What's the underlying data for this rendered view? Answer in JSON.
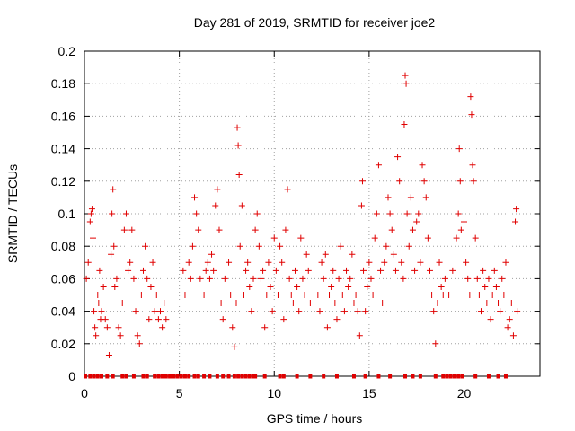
{
  "chart_data": {
    "type": "scatter",
    "title": "Day 281 of 2019, SRMTID for receiver joe2",
    "xlabel": "GPS time / hours",
    "ylabel": "SRMTID / TECUs",
    "xlim": [
      0,
      24
    ],
    "ylim": [
      0,
      0.2
    ],
    "xticks": [
      0,
      5,
      10,
      15,
      20
    ],
    "xtick_labels": [
      "0",
      "5",
      "10",
      "15",
      "20"
    ],
    "yticks": [
      0,
      0.02,
      0.04,
      0.06,
      0.08,
      0.1,
      0.12,
      0.14,
      0.16,
      0.18,
      0.2
    ],
    "ytick_labels": [
      "0",
      "0.02",
      "0.04",
      "0.06",
      "0.08",
      "0.1",
      "0.12",
      "0.14",
      "0.16",
      "0.18",
      "0.2"
    ],
    "grid": true,
    "marker": "+",
    "color": "#e00000",
    "series": [
      {
        "name": "SRMTID",
        "points": [
          [
            0.1,
            0.06
          ],
          [
            0.2,
            0.07
          ],
          [
            0.3,
            0.095
          ],
          [
            0.35,
            0.1
          ],
          [
            0.4,
            0.103
          ],
          [
            0.45,
            0.085
          ],
          [
            0.5,
            0.04
          ],
          [
            0.55,
            0.03
          ],
          [
            0.6,
            0.025
          ],
          [
            0.7,
            0.05
          ],
          [
            0.75,
            0.045
          ],
          [
            0.8,
            0.065
          ],
          [
            0.85,
            0.035
          ],
          [
            0.9,
            0.04
          ],
          [
            1.0,
            0.055
          ],
          [
            1.1,
            0.035
          ],
          [
            1.2,
            0.03
          ],
          [
            1.3,
            0.013
          ],
          [
            1.4,
            0.075
          ],
          [
            1.45,
            0.1
          ],
          [
            1.5,
            0.115
          ],
          [
            1.55,
            0.08
          ],
          [
            1.6,
            0.055
          ],
          [
            1.7,
            0.06
          ],
          [
            1.8,
            0.03
          ],
          [
            1.9,
            0.025
          ],
          [
            2.0,
            0.045
          ],
          [
            2.1,
            0.09
          ],
          [
            2.2,
            0.1
          ],
          [
            2.3,
            0.065
          ],
          [
            2.4,
            0.07
          ],
          [
            2.5,
            0.09
          ],
          [
            2.6,
            0.06
          ],
          [
            2.7,
            0.04
          ],
          [
            2.8,
            0.025
          ],
          [
            2.9,
            0.02
          ],
          [
            3.0,
            0.05
          ],
          [
            3.1,
            0.065
          ],
          [
            3.2,
            0.08
          ],
          [
            3.3,
            0.06
          ],
          [
            3.4,
            0.035
          ],
          [
            3.5,
            0.055
          ],
          [
            3.6,
            0.07
          ],
          [
            3.7,
            0.04
          ],
          [
            3.8,
            0.05
          ],
          [
            3.9,
            0.035
          ],
          [
            4.0,
            0.04
          ],
          [
            4.1,
            0.03
          ],
          [
            4.2,
            0.045
          ],
          [
            4.3,
            0.035
          ],
          [
            5.2,
            0.065
          ],
          [
            5.3,
            0.05
          ],
          [
            5.5,
            0.07
          ],
          [
            5.6,
            0.06
          ],
          [
            5.7,
            0.08
          ],
          [
            5.8,
            0.11
          ],
          [
            5.9,
            0.1
          ],
          [
            6.0,
            0.09
          ],
          [
            6.1,
            0.06
          ],
          [
            6.3,
            0.05
          ],
          [
            6.4,
            0.065
          ],
          [
            6.5,
            0.07
          ],
          [
            6.6,
            0.06
          ],
          [
            6.7,
            0.075
          ],
          [
            6.8,
            0.065
          ],
          [
            6.9,
            0.105
          ],
          [
            7.0,
            0.115
          ],
          [
            7.1,
            0.09
          ],
          [
            7.2,
            0.045
          ],
          [
            7.3,
            0.035
          ],
          [
            7.4,
            0.06
          ],
          [
            7.6,
            0.07
          ],
          [
            7.7,
            0.05
          ],
          [
            7.8,
            0.03
          ],
          [
            7.9,
            0.018
          ],
          [
            8.0,
            0.045
          ],
          [
            8.05,
            0.153
          ],
          [
            8.1,
            0.142
          ],
          [
            8.15,
            0.124
          ],
          [
            8.2,
            0.08
          ],
          [
            8.3,
            0.105
          ],
          [
            8.4,
            0.05
          ],
          [
            8.5,
            0.065
          ],
          [
            8.6,
            0.07
          ],
          [
            8.7,
            0.055
          ],
          [
            8.8,
            0.04
          ],
          [
            8.9,
            0.06
          ],
          [
            9.0,
            0.09
          ],
          [
            9.1,
            0.1
          ],
          [
            9.2,
            0.08
          ],
          [
            9.3,
            0.06
          ],
          [
            9.4,
            0.065
          ],
          [
            9.5,
            0.03
          ],
          [
            9.6,
            0.05
          ],
          [
            9.7,
            0.07
          ],
          [
            9.8,
            0.055
          ],
          [
            9.9,
            0.04
          ],
          [
            10.0,
            0.085
          ],
          [
            10.1,
            0.065
          ],
          [
            10.2,
            0.05
          ],
          [
            10.3,
            0.08
          ],
          [
            10.4,
            0.07
          ],
          [
            10.5,
            0.035
          ],
          [
            10.6,
            0.09
          ],
          [
            10.7,
            0.115
          ],
          [
            10.8,
            0.06
          ],
          [
            10.9,
            0.05
          ],
          [
            11.0,
            0.045
          ],
          [
            11.1,
            0.065
          ],
          [
            11.2,
            0.055
          ],
          [
            11.3,
            0.04
          ],
          [
            11.4,
            0.085
          ],
          [
            11.5,
            0.06
          ],
          [
            11.6,
            0.05
          ],
          [
            11.7,
            0.075
          ],
          [
            11.8,
            0.065
          ],
          [
            11.9,
            0.045
          ],
          [
            12.3,
            0.05
          ],
          [
            12.4,
            0.04
          ],
          [
            12.5,
            0.07
          ],
          [
            12.6,
            0.06
          ],
          [
            12.7,
            0.075
          ],
          [
            12.8,
            0.03
          ],
          [
            12.9,
            0.05
          ],
          [
            13.0,
            0.055
          ],
          [
            13.1,
            0.065
          ],
          [
            13.2,
            0.045
          ],
          [
            13.3,
            0.035
          ],
          [
            13.4,
            0.06
          ],
          [
            13.5,
            0.08
          ],
          [
            13.6,
            0.05
          ],
          [
            13.7,
            0.04
          ],
          [
            13.8,
            0.065
          ],
          [
            13.9,
            0.055
          ],
          [
            14.0,
            0.06
          ],
          [
            14.1,
            0.075
          ],
          [
            14.2,
            0.045
          ],
          [
            14.3,
            0.05
          ],
          [
            14.4,
            0.04
          ],
          [
            14.5,
            0.025
          ],
          [
            14.6,
            0.105
          ],
          [
            14.65,
            0.12
          ],
          [
            14.7,
            0.065
          ],
          [
            14.8,
            0.04
          ],
          [
            14.9,
            0.055
          ],
          [
            15.0,
            0.07
          ],
          [
            15.1,
            0.06
          ],
          [
            15.2,
            0.05
          ],
          [
            15.3,
            0.085
          ],
          [
            15.4,
            0.1
          ],
          [
            15.5,
            0.13
          ],
          [
            15.6,
            0.065
          ],
          [
            15.7,
            0.045
          ],
          [
            15.8,
            0.07
          ],
          [
            15.9,
            0.08
          ],
          [
            16.0,
            0.11
          ],
          [
            16.1,
            0.1
          ],
          [
            16.2,
            0.09
          ],
          [
            16.3,
            0.075
          ],
          [
            16.4,
            0.065
          ],
          [
            16.5,
            0.135
          ],
          [
            16.6,
            0.12
          ],
          [
            16.7,
            0.07
          ],
          [
            16.8,
            0.06
          ],
          [
            16.85,
            0.155
          ],
          [
            16.9,
            0.185
          ],
          [
            16.95,
            0.18
          ],
          [
            17.0,
            0.1
          ],
          [
            17.1,
            0.08
          ],
          [
            17.2,
            0.11
          ],
          [
            17.3,
            0.09
          ],
          [
            17.4,
            0.065
          ],
          [
            17.5,
            0.095
          ],
          [
            17.6,
            0.1
          ],
          [
            17.7,
            0.07
          ],
          [
            17.8,
            0.13
          ],
          [
            17.9,
            0.12
          ],
          [
            18.0,
            0.11
          ],
          [
            18.1,
            0.085
          ],
          [
            18.2,
            0.065
          ],
          [
            18.3,
            0.05
          ],
          [
            18.4,
            0.04
          ],
          [
            18.5,
            0.02
          ],
          [
            18.6,
            0.045
          ],
          [
            18.7,
            0.07
          ],
          [
            18.8,
            0.055
          ],
          [
            18.9,
            0.05
          ],
          [
            19.0,
            0.06
          ],
          [
            19.2,
            0.05
          ],
          [
            19.4,
            0.065
          ],
          [
            19.6,
            0.085
          ],
          [
            19.7,
            0.1
          ],
          [
            19.75,
            0.14
          ],
          [
            19.8,
            0.12
          ],
          [
            19.85,
            0.09
          ],
          [
            20.0,
            0.095
          ],
          [
            20.1,
            0.07
          ],
          [
            20.2,
            0.06
          ],
          [
            20.3,
            0.05
          ],
          [
            20.35,
            0.172
          ],
          [
            20.4,
            0.161
          ],
          [
            20.45,
            0.13
          ],
          [
            20.5,
            0.12
          ],
          [
            20.6,
            0.085
          ],
          [
            20.7,
            0.06
          ],
          [
            20.8,
            0.05
          ],
          [
            20.9,
            0.04
          ],
          [
            21.0,
            0.065
          ],
          [
            21.1,
            0.055
          ],
          [
            21.2,
            0.045
          ],
          [
            21.3,
            0.06
          ],
          [
            21.4,
            0.035
          ],
          [
            21.5,
            0.05
          ],
          [
            21.6,
            0.065
          ],
          [
            21.7,
            0.055
          ],
          [
            21.8,
            0.045
          ],
          [
            21.9,
            0.04
          ],
          [
            22.0,
            0.06
          ],
          [
            22.1,
            0.05
          ],
          [
            22.2,
            0.07
          ],
          [
            22.3,
            0.03
          ],
          [
            22.4,
            0.035
          ],
          [
            22.5,
            0.045
          ],
          [
            22.6,
            0.025
          ],
          [
            22.7,
            0.095
          ],
          [
            22.75,
            0.103
          ],
          [
            22.8,
            0.04
          ]
        ]
      }
    ],
    "zero_points_x": [
      0.05,
      0.3,
      0.5,
      0.7,
      0.9,
      1.2,
      1.5,
      2.0,
      2.2,
      2.6,
      3.1,
      3.3,
      3.7,
      3.9,
      4.1,
      4.3,
      4.5,
      4.7,
      4.9,
      5.1,
      5.3,
      5.5,
      5.8,
      6.0,
      6.3,
      6.6,
      7.0,
      7.3,
      7.6,
      7.9,
      8.1,
      8.3,
      8.5,
      8.7,
      8.9,
      9.0,
      9.5,
      10.3,
      10.5,
      11.2,
      11.9,
      12.6,
      13.3,
      14.2,
      14.8,
      15.5,
      16.1,
      16.9,
      17.3,
      17.7,
      18.5,
      18.9,
      19.1,
      19.3,
      19.5,
      19.7,
      19.9,
      20.6,
      21.3,
      21.8,
      22.2
    ]
  }
}
